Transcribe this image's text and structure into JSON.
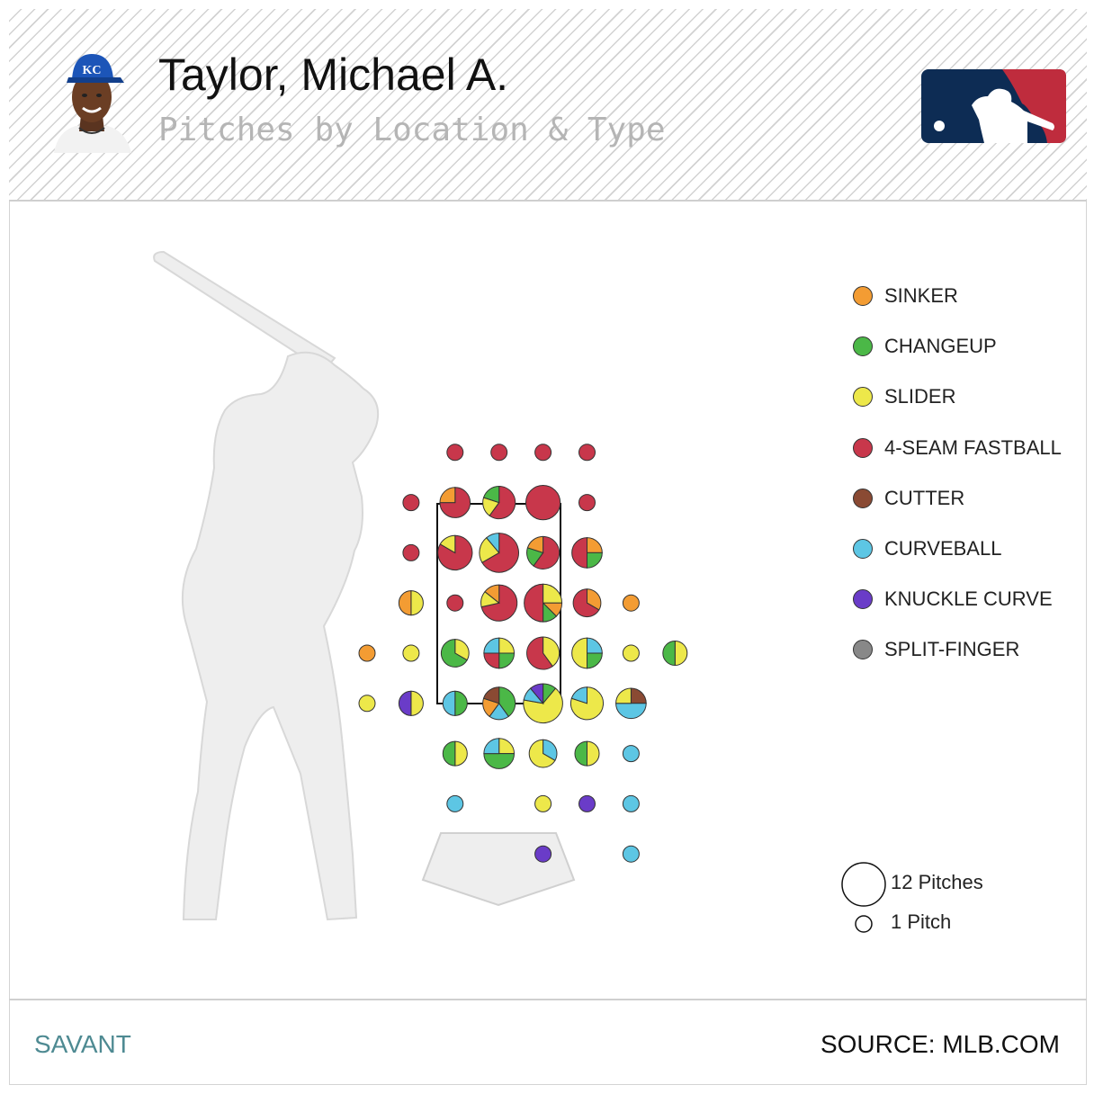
{
  "header": {
    "title": "Taylor, Michael A.",
    "subtitle": "Pitches by Location & Type"
  },
  "footer": {
    "brand": "SAVANT",
    "source": "SOURCE: MLB.COM"
  },
  "colors": {
    "SINKER": "#f39c33",
    "CHANGEUP": "#4bb847",
    "SLIDER": "#ede84a",
    "4-SEAM FASTBALL": "#c8374b",
    "CUTTER": "#8a4a33",
    "CURVEBALL": "#5dc6e4",
    "KNUCKLE CURVE": "#6a3cc8",
    "SPLIT-FINGER": "#888888",
    "logo_navy": "#0d2c54",
    "logo_red": "#bf2c3d"
  },
  "chart_data": {
    "type": "scatter",
    "pitch_types": [
      "SINKER",
      "CHANGEUP",
      "SLIDER",
      "4-SEAM FASTBALL",
      "CUTTER",
      "CURVEBALL",
      "KNUCKLE CURVE",
      "SPLIT-FINGER"
    ],
    "size_legend": [
      {
        "label": "12 Pitches",
        "count": 12
      },
      {
        "label": "1 Pitch",
        "count": 1
      }
    ],
    "grid": {
      "columns": 8,
      "rows": 9,
      "strike_zone": {
        "col_start": 2,
        "col_end": 4,
        "row_start": 2,
        "row_end": 5
      }
    },
    "bins": [
      {
        "col": 2,
        "row": 1,
        "pitches": {
          "4-SEAM FASTBALL": 1
        }
      },
      {
        "col": 3,
        "row": 1,
        "pitches": {
          "4-SEAM FASTBALL": 1
        }
      },
      {
        "col": 4,
        "row": 1,
        "pitches": {
          "4-SEAM FASTBALL": 1
        }
      },
      {
        "col": 5,
        "row": 1,
        "pitches": {
          "4-SEAM FASTBALL": 1
        }
      },
      {
        "col": 1,
        "row": 2,
        "pitches": {
          "4-SEAM FASTBALL": 1
        }
      },
      {
        "col": 2,
        "row": 2,
        "pitches": {
          "4-SEAM FASTBALL": 3,
          "SINKER": 1
        }
      },
      {
        "col": 3,
        "row": 2,
        "pitches": {
          "4-SEAM FASTBALL": 3,
          "SLIDER": 1,
          "CHANGEUP": 1
        }
      },
      {
        "col": 4,
        "row": 2,
        "pitches": {
          "4-SEAM FASTBALL": 6
        }
      },
      {
        "col": 5,
        "row": 2,
        "pitches": {
          "4-SEAM FASTBALL": 1
        }
      },
      {
        "col": 1,
        "row": 3,
        "pitches": {
          "4-SEAM FASTBALL": 1
        }
      },
      {
        "col": 2,
        "row": 3,
        "pitches": {
          "4-SEAM FASTBALL": 5,
          "SLIDER": 1
        }
      },
      {
        "col": 3,
        "row": 3,
        "pitches": {
          "4-SEAM FASTBALL": 6,
          "SLIDER": 2,
          "CURVEBALL": 1
        }
      },
      {
        "col": 4,
        "row": 3,
        "pitches": {
          "4-SEAM FASTBALL": 3,
          "CHANGEUP": 1,
          "SINKER": 1
        }
      },
      {
        "col": 5,
        "row": 3,
        "pitches": {
          "SINKER": 1,
          "CHANGEUP": 1,
          "4-SEAM FASTBALL": 2
        }
      },
      {
        "col": 1,
        "row": 4,
        "pitches": {
          "SLIDER": 1,
          "SINKER": 1
        }
      },
      {
        "col": 2,
        "row": 4,
        "pitches": {
          "4-SEAM FASTBALL": 1
        }
      },
      {
        "col": 3,
        "row": 4,
        "pitches": {
          "4-SEAM FASTBALL": 5,
          "SLIDER": 1,
          "SINKER": 1
        }
      },
      {
        "col": 4,
        "row": 4,
        "pitches": {
          "SLIDER": 2,
          "SINKER": 1,
          "CHANGEUP": 1,
          "4-SEAM FASTBALL": 4
        }
      },
      {
        "col": 5,
        "row": 4,
        "pitches": {
          "SINKER": 1,
          "4-SEAM FASTBALL": 2
        }
      },
      {
        "col": 6,
        "row": 4,
        "pitches": {
          "SINKER": 1
        }
      },
      {
        "col": 0,
        "row": 5,
        "pitches": {
          "SINKER": 1
        }
      },
      {
        "col": 1,
        "row": 5,
        "pitches": {
          "SLIDER": 1
        }
      },
      {
        "col": 2,
        "row": 5,
        "pitches": {
          "SLIDER": 1,
          "CHANGEUP": 2
        }
      },
      {
        "col": 3,
        "row": 5,
        "pitches": {
          "SLIDER": 1,
          "CHANGEUP": 1,
          "4-SEAM FASTBALL": 1,
          "CURVEBALL": 1
        }
      },
      {
        "col": 4,
        "row": 5,
        "pitches": {
          "SLIDER": 2,
          "4-SEAM FASTBALL": 3
        }
      },
      {
        "col": 5,
        "row": 5,
        "pitches": {
          "CURVEBALL": 1,
          "CHANGEUP": 1,
          "SLIDER": 2
        }
      },
      {
        "col": 6,
        "row": 5,
        "pitches": {
          "SLIDER": 1
        }
      },
      {
        "col": 7,
        "row": 5,
        "pitches": {
          "SLIDER": 1,
          "CHANGEUP": 1
        }
      },
      {
        "col": 0,
        "row": 6,
        "pitches": {
          "SLIDER": 1
        }
      },
      {
        "col": 1,
        "row": 6,
        "pitches": {
          "SLIDER": 1,
          "KNUCKLE CURVE": 1
        }
      },
      {
        "col": 2,
        "row": 6,
        "pitches": {
          "CHANGEUP": 1,
          "CURVEBALL": 1
        }
      },
      {
        "col": 3,
        "row": 6,
        "pitches": {
          "CHANGEUP": 2,
          "CURVEBALL": 1,
          "SINKER": 1,
          "CUTTER": 1
        }
      },
      {
        "col": 4,
        "row": 6,
        "pitches": {
          "CHANGEUP": 1,
          "SLIDER": 6,
          "CURVEBALL": 1,
          "KNUCKLE CURVE": 1
        }
      },
      {
        "col": 5,
        "row": 6,
        "pitches": {
          "SLIDER": 4,
          "CURVEBALL": 1
        }
      },
      {
        "col": 6,
        "row": 6,
        "pitches": {
          "CUTTER": 1,
          "CURVEBALL": 2,
          "SLIDER": 1
        }
      },
      {
        "col": 2,
        "row": 7,
        "pitches": {
          "SLIDER": 1,
          "CHANGEUP": 1
        }
      },
      {
        "col": 3,
        "row": 7,
        "pitches": {
          "SLIDER": 1,
          "CHANGEUP": 2,
          "CURVEBALL": 1
        }
      },
      {
        "col": 4,
        "row": 7,
        "pitches": {
          "CURVEBALL": 1,
          "SLIDER": 2
        }
      },
      {
        "col": 5,
        "row": 7,
        "pitches": {
          "SLIDER": 1,
          "CHANGEUP": 1
        }
      },
      {
        "col": 6,
        "row": 7,
        "pitches": {
          "CURVEBALL": 1
        }
      },
      {
        "col": 2,
        "row": 8,
        "pitches": {
          "CURVEBALL": 1
        }
      },
      {
        "col": 4,
        "row": 8,
        "pitches": {
          "SLIDER": 1
        }
      },
      {
        "col": 5,
        "row": 8,
        "pitches": {
          "KNUCKLE CURVE": 1
        }
      },
      {
        "col": 6,
        "row": 8,
        "pitches": {
          "CURVEBALL": 1
        }
      },
      {
        "col": 4,
        "row": 9,
        "pitches": {
          "KNUCKLE CURVE": 1
        }
      },
      {
        "col": 6,
        "row": 9,
        "pitches": {
          "CURVEBALL": 1
        }
      }
    ]
  }
}
